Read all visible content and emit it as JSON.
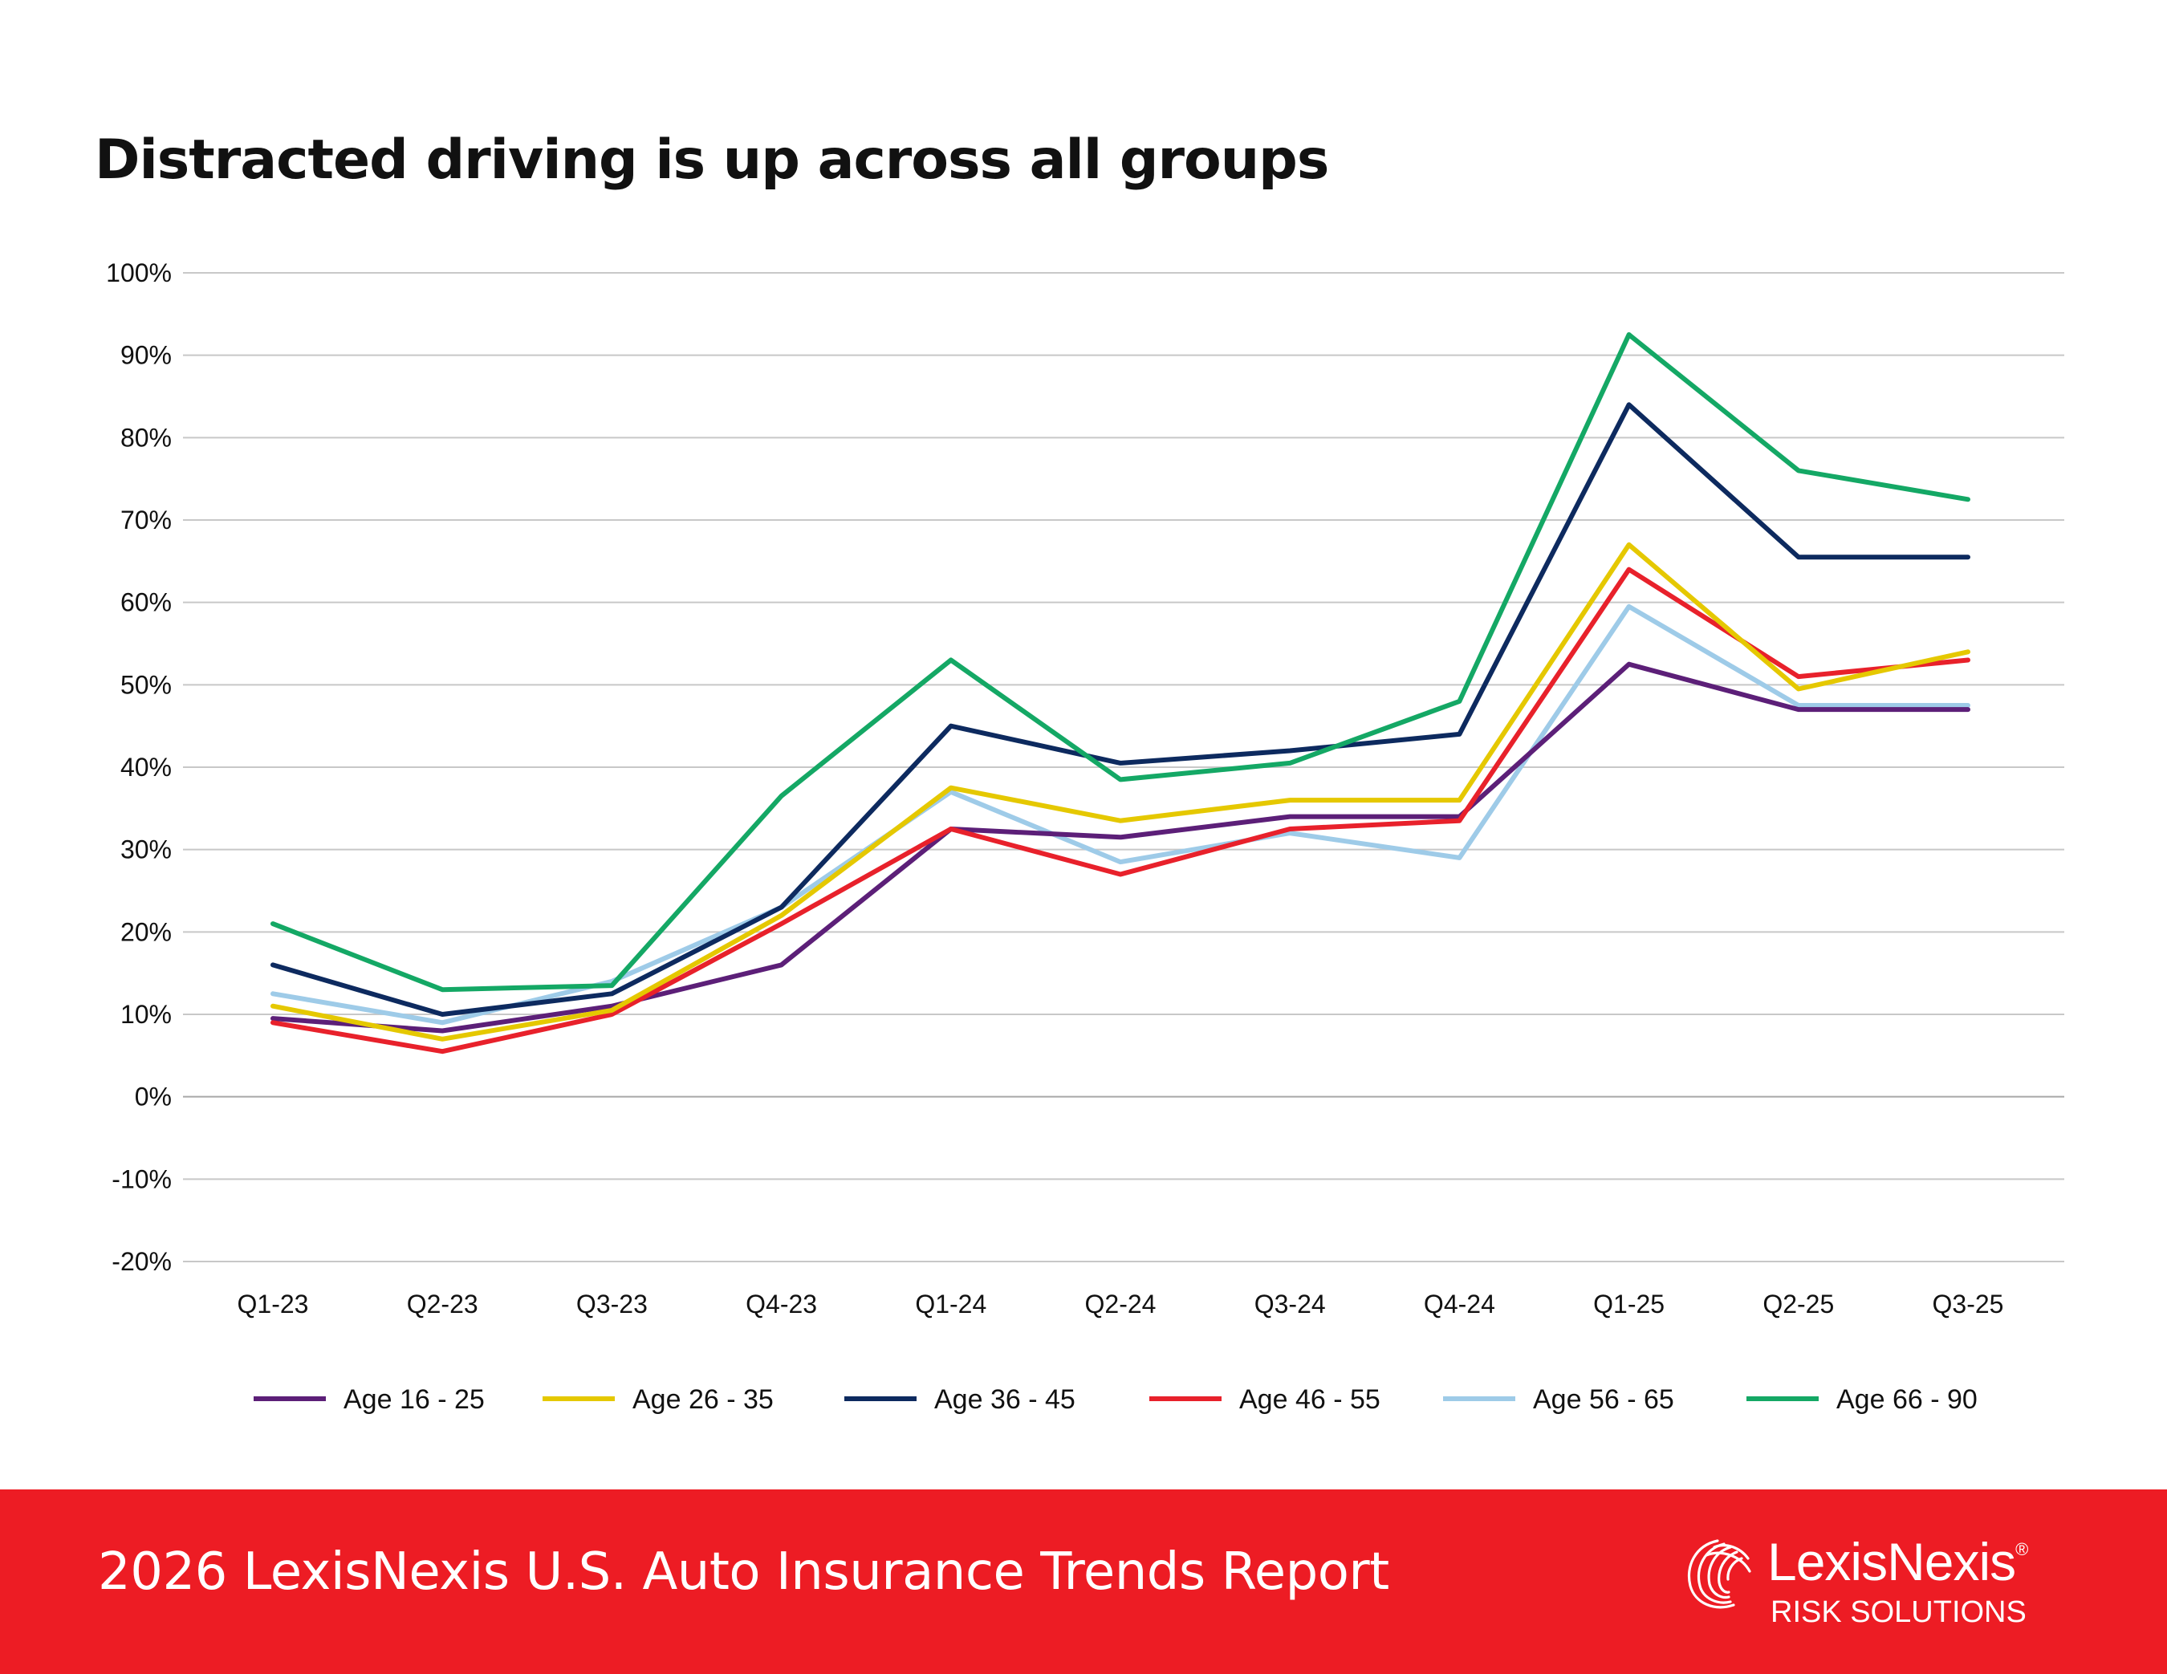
{
  "chart_data": {
    "type": "line",
    "title": "Distracted driving is up across all groups",
    "categories": [
      "Q1-23",
      "Q2-23",
      "Q3-23",
      "Q4-23",
      "Q1-24",
      "Q2-24",
      "Q3-24",
      "Q4-24",
      "Q1-25",
      "Q2-25",
      "Q3-25"
    ],
    "y_ticks": [
      "100%",
      "90%",
      "80%",
      "70%",
      "60%",
      "50%",
      "40%",
      "30%",
      "20%",
      "10%",
      "0%",
      "-10%",
      "-20%"
    ],
    "ylim": [
      -20,
      100
    ],
    "grid": true,
    "legend_position": "bottom",
    "series": [
      {
        "name": "Age 16 - 25",
        "color": "#5c1f78",
        "values": [
          9.5,
          8,
          11,
          16,
          32.5,
          31.5,
          34,
          34,
          52.5,
          47,
          47
        ]
      },
      {
        "name": "Age 26 - 35",
        "color": "#e5c800",
        "values": [
          11,
          7,
          10.5,
          22,
          37.5,
          33.5,
          36,
          36,
          67,
          49.5,
          54
        ]
      },
      {
        "name": "Age 36 - 45",
        "color": "#0d2a5f",
        "values": [
          16,
          10,
          12.5,
          23,
          45,
          40.5,
          42,
          44,
          84,
          65.5,
          65.5
        ]
      },
      {
        "name": "Age 46 - 55",
        "color": "#e8212b",
        "values": [
          9,
          5.5,
          10,
          21,
          32.5,
          27,
          32.5,
          33.5,
          64,
          51,
          53
        ]
      },
      {
        "name": "Age 56 - 65",
        "color": "#9ecbe8",
        "values": [
          12.5,
          9,
          14,
          23,
          37,
          28.5,
          32,
          29,
          59.5,
          47.5,
          47.5
        ]
      },
      {
        "name": "Age 66 - 90",
        "color": "#14a865",
        "values": [
          21,
          13,
          13.5,
          36.5,
          53,
          38.5,
          40.5,
          48,
          92.5,
          76,
          72.5
        ]
      }
    ]
  },
  "footer": {
    "report_title": "2026 LexisNexis U.S. Auto Insurance Trends Report",
    "logo_name": "LexisNexis",
    "logo_registered": "®",
    "logo_subtitle": "RISK SOLUTIONS"
  },
  "colors": {
    "footer_background": "#ed1c24",
    "gridline": "#c8c8c8"
  }
}
